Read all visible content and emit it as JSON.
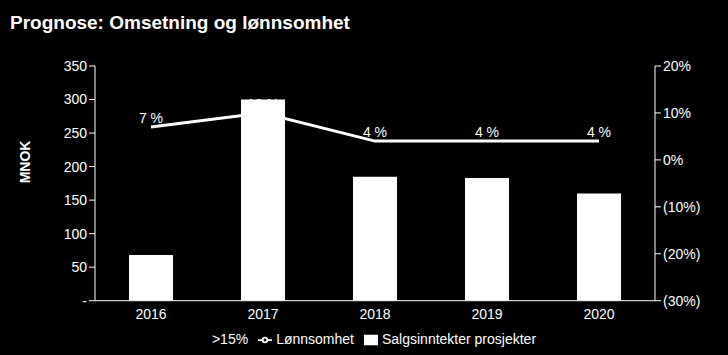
{
  "chart_data": {
    "type": "bar",
    "title": "Prognose: Omsetning og lønnsomhet",
    "y_label": "MNOK",
    "categories": [
      "2016",
      "2017",
      "2018",
      "2019",
      "2020"
    ],
    "series": [
      {
        "name": "Salgsinntekter prosjekter",
        "type": "bar",
        "color": "#ffffff",
        "values": [
          68,
          300,
          185,
          183,
          160
        ]
      },
      {
        "name": "Lønnsomhet",
        "type": "line",
        "axis": "y2",
        "color": "#ffffff",
        "marker": "none",
        "values": [
          7,
          10,
          4,
          4,
          4
        ],
        "value_labels": [
          "7 %",
          "10 %",
          "4 %",
          "4 %",
          "4 %"
        ]
      },
      {
        "name": ">15%",
        "type": "line",
        "axis": "y2",
        "color": "#000000",
        "marker": "none",
        "values": [
          null,
          null,
          null,
          null,
          null
        ]
      }
    ],
    "ylim": [
      0,
      350
    ],
    "yticks": [
      {
        "value": 0,
        "label": "-"
      },
      50,
      100,
      150,
      200,
      250,
      300,
      350
    ],
    "y2lim": [
      -30,
      20
    ],
    "y2ticks": [
      {
        "value": -30,
        "label": "(30%)"
      },
      {
        "value": -20,
        "label": "(20%)"
      },
      {
        "value": -10,
        "label": "(10%)"
      },
      {
        "value": 0,
        "label": "0%"
      },
      {
        "value": 10,
        "label": "10%"
      },
      {
        "value": 20,
        "label": "20%"
      }
    ],
    "grid": false,
    "data_labels": true,
    "legend": "bottom"
  }
}
